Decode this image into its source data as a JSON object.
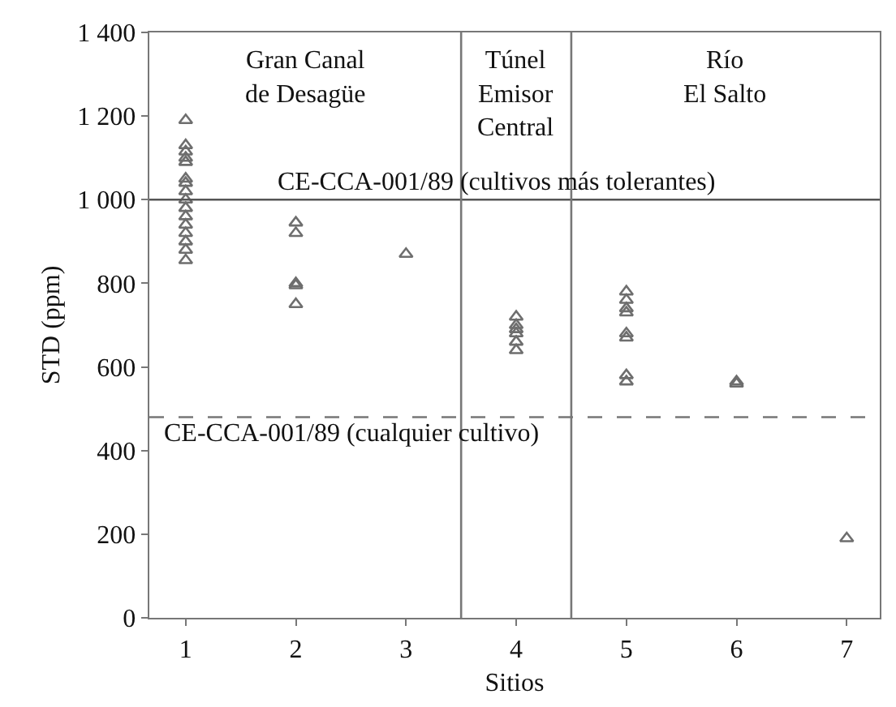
{
  "chart_data": {
    "type": "scatter",
    "xlabel": "Sitios",
    "ylabel": "STD (ppm)",
    "marker": "triangle",
    "grid": false,
    "xlim": [
      0.67,
      7.3
    ],
    "xticks": [
      1,
      2,
      3,
      4,
      5,
      6,
      7
    ],
    "ylim": [
      0,
      1400
    ],
    "yticks": [
      0,
      200,
      400,
      600,
      800,
      {
        "value": 1000,
        "label": "1 000"
      },
      {
        "value": 1200,
        "label": "1 200"
      },
      {
        "value": 1400,
        "label": "1 400"
      }
    ],
    "series": [
      {
        "color": "#6e6e6e",
        "x": [
          1,
          1,
          1,
          1,
          1,
          1,
          1,
          1,
          1,
          1,
          1,
          1,
          1,
          1,
          1,
          1,
          2,
          2,
          2,
          2,
          2,
          3,
          4,
          4,
          4,
          4,
          4,
          4,
          5,
          5,
          5,
          5,
          5,
          5,
          5,
          5,
          6,
          6,
          7
        ],
        "values": [
          1190,
          1130,
          1115,
          1100,
          1090,
          1050,
          1040,
          1020,
          1000,
          980,
          960,
          940,
          920,
          900,
          880,
          855,
          945,
          920,
          800,
          795,
          750,
          870,
          720,
          700,
          690,
          680,
          660,
          640,
          780,
          760,
          740,
          730,
          680,
          670,
          580,
          565,
          565,
          560,
          190
        ]
      }
    ],
    "ref_lines": [
      {
        "axis": "y",
        "value": 1000,
        "label": "CE-CCA-001/89 (cultivos más tolerantes)",
        "color": "#555555",
        "line_style": "solid"
      },
      {
        "axis": "y",
        "value": 480,
        "label": "CE-CCA-001/89 (cualquier cultivo)",
        "color": "#777777",
        "line_style": "dashed"
      },
      {
        "axis": "x",
        "value": 3.5,
        "color": "#777777",
        "line_style": "solid"
      },
      {
        "axis": "x",
        "value": 4.5,
        "color": "#777777",
        "line_style": "solid"
      }
    ],
    "annotations": [
      "Gran Canal\nde Desagüe",
      "Túnel\nEmisor\nCentral",
      "Río\nEl Salto"
    ]
  }
}
